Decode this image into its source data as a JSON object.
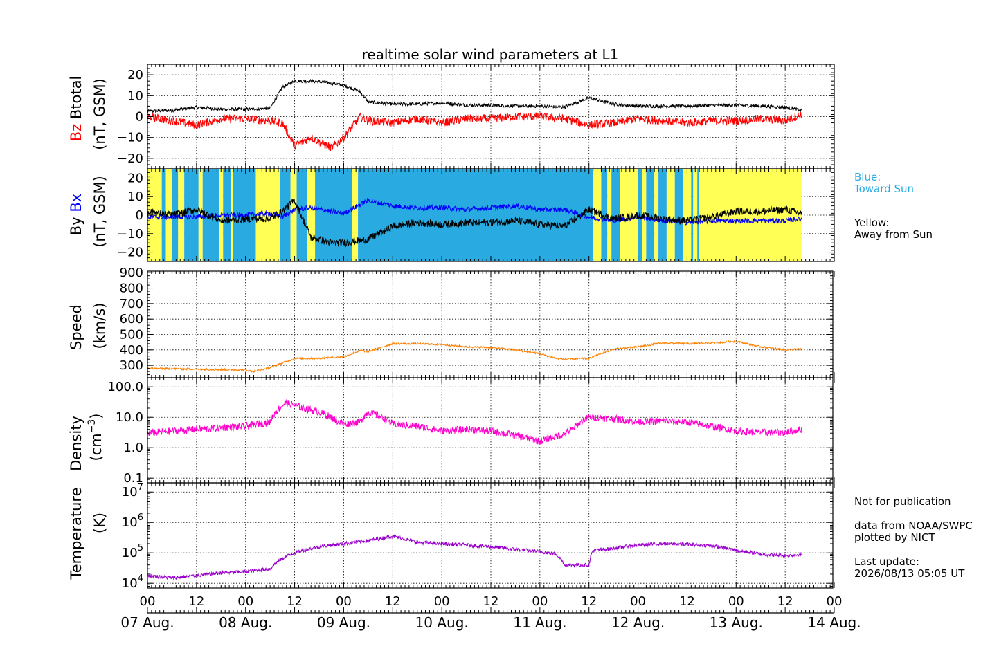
{
  "title": "realtime solar wind parameters at L1",
  "colors": {
    "bz": "#ff0000",
    "btotal": "#000000",
    "bx": "#0000ff",
    "by": "#000000",
    "speed": "#ff8000",
    "density": "#ff00cc",
    "temperature": "#9900cc",
    "toward_sun": "#29abe2",
    "away_from_sun": "#ffff55"
  },
  "legend_side": {
    "blue_label": "Blue:",
    "blue_desc": "Toward Sun",
    "yellow_label": "Yellow:",
    "yellow_desc": "Away from Sun",
    "not_for_pub": "Not for publication",
    "data_from": "data from NOAA/SWPC",
    "plotted_by": "plotted by NICT",
    "last_update_label": "Last update:",
    "last_update": "2026/08/13 05:05 UT"
  },
  "panels": {
    "mag": {
      "ylabel_red": "Bz",
      "ylabel_black": "Btotal",
      "units": "(nT, GSM)"
    },
    "bxby": {
      "ylabel_black": "By",
      "ylabel_blue": "Bx",
      "units": "(nT, GSM)"
    },
    "speed": {
      "ylabel": "Speed",
      "units": "(km/s)"
    },
    "density": {
      "ylabel": "Density",
      "units": "(cm",
      "units_exp": "−3",
      "units_close": ")"
    },
    "temp": {
      "ylabel": "Temperature",
      "units": "(K)"
    }
  },
  "chart_data": [
    {
      "type": "line",
      "panel": "mag",
      "x_hours": [
        0,
        6,
        12,
        18,
        24,
        30,
        33,
        36,
        40,
        45,
        48,
        52,
        54,
        60,
        66,
        72,
        78,
        84,
        90,
        96,
        102,
        108,
        114,
        120,
        126,
        132,
        138,
        144,
        150,
        156,
        160
      ],
      "xlim": [
        0,
        168
      ],
      "ylim": [
        -25,
        25
      ],
      "yticks": [
        -20,
        -10,
        0,
        10,
        20
      ],
      "series": [
        {
          "name": "Btotal",
          "values": [
            2.5,
            3,
            4.5,
            3.5,
            3.5,
            4,
            14,
            17,
            17,
            16,
            15,
            12,
            7,
            6,
            6,
            6.5,
            5.5,
            5.5,
            5,
            5,
            4.5,
            9,
            6,
            5,
            5,
            5,
            5.5,
            5.5,
            5,
            4.5,
            3
          ]
        },
        {
          "name": "Bz",
          "values": [
            0,
            -2,
            -4,
            -1,
            -1,
            -2,
            -3,
            -14,
            -10,
            -15,
            -10,
            0,
            -2,
            -3,
            -1,
            -3,
            -1,
            -1,
            0,
            0,
            -1,
            -4,
            -3,
            -1,
            -2,
            -3,
            -2,
            -2,
            -1,
            -2,
            1
          ]
        }
      ]
    },
    {
      "type": "line",
      "panel": "bxby",
      "x_hours": [
        0,
        6,
        12,
        18,
        24,
        30,
        33,
        36,
        40,
        45,
        48,
        54,
        60,
        66,
        72,
        78,
        84,
        90,
        96,
        102,
        108,
        114,
        120,
        126,
        132,
        138,
        144,
        150,
        156,
        160
      ],
      "xlim": [
        0,
        168
      ],
      "ylim": [
        -25,
        25
      ],
      "yticks": [
        -20,
        -10,
        0,
        10,
        20
      ],
      "series": [
        {
          "name": "By",
          "values": [
            2,
            0,
            3,
            -3,
            -2,
            -2,
            2,
            8,
            -12,
            -15,
            -15,
            -13,
            -6,
            -4,
            -5,
            -4,
            -4,
            -3,
            -5,
            -6,
            3,
            -2,
            0,
            -2,
            -3,
            -1,
            2,
            2,
            3,
            1
          ]
        },
        {
          "name": "Bx",
          "values": [
            -1,
            -1,
            -1,
            0,
            0,
            1,
            -1,
            3,
            4,
            2,
            1,
            8,
            5,
            4,
            4,
            3,
            4,
            5,
            3,
            3,
            -1,
            -3,
            -1,
            -3,
            -4,
            -3,
            -3,
            -3,
            -3,
            -2
          ]
        }
      ],
      "sector_bands_hours": [
        [
          "away",
          0,
          3.5
        ],
        [
          "toward",
          3.5,
          4.5
        ],
        [
          "away",
          4.5,
          6
        ],
        [
          "toward",
          6,
          7.5
        ],
        [
          "away",
          7.5,
          9
        ],
        [
          "toward",
          9,
          12.5
        ],
        [
          "away",
          12.5,
          13.5
        ],
        [
          "toward",
          13.5,
          17.5
        ],
        [
          "away",
          17.5,
          18.5
        ],
        [
          "toward",
          18.5,
          20.5
        ],
        [
          "away",
          20.5,
          21
        ],
        [
          "toward",
          21,
          26.5
        ],
        [
          "away",
          26.5,
          32.5
        ],
        [
          "toward",
          32.5,
          35
        ],
        [
          "away",
          35,
          36.5
        ],
        [
          "toward",
          36.5,
          39
        ],
        [
          "away",
          39,
          41
        ],
        [
          "toward",
          41,
          50
        ],
        [
          "away",
          50,
          51.5
        ],
        [
          "toward",
          51.5,
          109
        ],
        [
          "away",
          109,
          111
        ],
        [
          "toward",
          111,
          112.5
        ],
        [
          "away",
          112.5,
          113.5
        ],
        [
          "toward",
          113.5,
          115.5
        ],
        [
          "away",
          115.5,
          120
        ],
        [
          "toward",
          120,
          121
        ],
        [
          "away",
          121,
          122
        ],
        [
          "toward",
          122,
          124
        ],
        [
          "away",
          124,
          125
        ],
        [
          "toward",
          125,
          127
        ],
        [
          "away",
          127,
          129
        ],
        [
          "toward",
          129,
          131
        ],
        [
          "away",
          131,
          133
        ],
        [
          "toward",
          133,
          133.5
        ],
        [
          "away",
          133.5,
          134.5
        ],
        [
          "toward",
          134.5,
          135
        ],
        [
          "away",
          135,
          160
        ]
      ]
    },
    {
      "type": "line",
      "panel": "speed",
      "x_hours": [
        0,
        6,
        12,
        18,
        24,
        26,
        30,
        36,
        42,
        48,
        52,
        54,
        60,
        66,
        72,
        78,
        84,
        90,
        96,
        100,
        102,
        108,
        114,
        120,
        126,
        132,
        138,
        144,
        150,
        156,
        160
      ],
      "xlim": [
        0,
        168
      ],
      "ylim": [
        220,
        910
      ],
      "yticks": [
        300,
        400,
        500,
        600,
        700,
        800,
        900
      ],
      "series": [
        {
          "name": "Speed",
          "values": [
            280,
            278,
            275,
            272,
            270,
            260,
            285,
            345,
            345,
            355,
            395,
            390,
            440,
            440,
            435,
            420,
            415,
            400,
            375,
            345,
            340,
            345,
            405,
            420,
            445,
            440,
            445,
            455,
            420,
            400,
            405
          ]
        }
      ]
    },
    {
      "type": "line",
      "panel": "density",
      "yscale": "log",
      "x_hours": [
        0,
        6,
        12,
        18,
        24,
        30,
        34,
        38,
        42,
        46,
        48,
        52,
        54,
        60,
        66,
        72,
        78,
        84,
        90,
        96,
        102,
        104,
        108,
        114,
        120,
        126,
        132,
        138,
        144,
        150,
        156,
        160
      ],
      "xlim": [
        0,
        168
      ],
      "ylim": [
        0.07,
        200
      ],
      "yticks": [
        0.1,
        1.0,
        10.0,
        100.0
      ],
      "ytick_labels": [
        "0.1",
        "1.0",
        "10.0",
        "100.0"
      ],
      "series": [
        {
          "name": "Density",
          "values": [
            3,
            3.5,
            4,
            4.5,
            5,
            7,
            30,
            20,
            15,
            8,
            6,
            7,
            15,
            6,
            5,
            3.5,
            4,
            3.5,
            2.5,
            1.6,
            2.8,
            4,
            10,
            9,
            7,
            7.5,
            7,
            5,
            3.5,
            3.2,
            3.2,
            4
          ]
        }
      ]
    },
    {
      "type": "line",
      "panel": "temp",
      "yscale": "log",
      "x_hours": [
        0,
        6,
        12,
        18,
        24,
        30,
        36,
        42,
        48,
        54,
        60,
        66,
        72,
        78,
        84,
        90,
        96,
        100,
        102,
        108,
        109,
        114,
        120,
        126,
        132,
        138,
        144,
        150,
        156,
        160
      ],
      "xlim": [
        0,
        168
      ],
      "ylim": [
        7000,
        20000000
      ],
      "yticks": [
        10000,
        100000,
        1000000,
        10000000
      ],
      "ytick_labels": [
        "10^4",
        "10^5",
        "10^6",
        "10^7"
      ],
      "series": [
        {
          "name": "Temperature",
          "values": [
            18000,
            15000,
            18000,
            22000,
            24000,
            30000,
            100000,
            160000,
            200000,
            250000,
            350000,
            220000,
            200000,
            180000,
            160000,
            130000,
            110000,
            90000,
            40000,
            40000,
            120000,
            140000,
            180000,
            200000,
            190000,
            170000,
            120000,
            90000,
            80000,
            90000
          ]
        }
      ]
    }
  ],
  "x_axis": {
    "hour_labels": [
      "00",
      "12",
      "00",
      "12",
      "00",
      "12",
      "00",
      "12",
      "00",
      "12",
      "00",
      "12",
      "00",
      "12",
      "00"
    ],
    "date_labels": [
      "07 Aug.",
      "08 Aug.",
      "09 Aug.",
      "10 Aug.",
      "11 Aug.",
      "12 Aug.",
      "13 Aug.",
      "14 Aug."
    ]
  }
}
